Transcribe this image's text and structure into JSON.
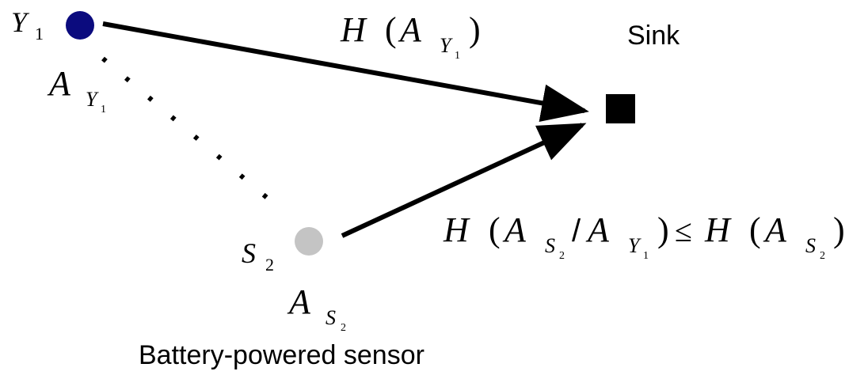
{
  "nodes": [
    {
      "symbol": "Y",
      "subscript": "1",
      "attribute": [
        "A",
        "Y",
        "1"
      ]
    },
    {
      "symbol": "S",
      "subscript": "2",
      "attribute": [
        "A",
        "S",
        "2"
      ],
      "caption": "Battery-powered sensor"
    }
  ],
  "sink": {
    "label": "Sink"
  },
  "links": [
    {
      "formula": [
        "H",
        "(",
        "A",
        "Y",
        "1",
        ")"
      ]
    },
    {
      "formula": [
        "H",
        "(",
        "A",
        "S",
        "2",
        "/",
        "A",
        "Y",
        "1",
        ")",
        "≤",
        "H",
        "(",
        "A",
        "S",
        "2",
        ")"
      ]
    }
  ]
}
